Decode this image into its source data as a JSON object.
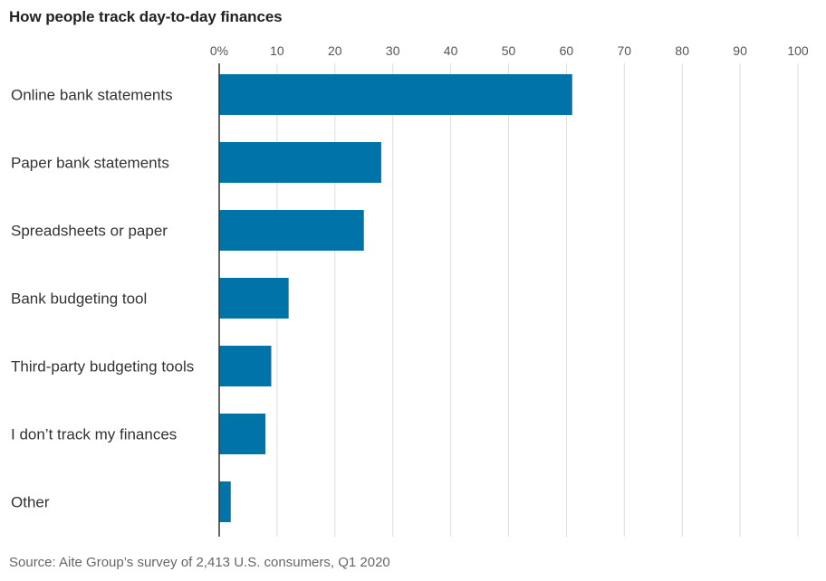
{
  "chart_data": {
    "type": "bar",
    "orientation": "horizontal",
    "title": "How people track day-to-day finances",
    "categories": [
      "Online bank statements",
      "Paper bank statements",
      "Spreadsheets or paper",
      "Bank budgeting tool",
      "Third-party budgeting tools",
      "I don’t track my finances",
      "Other"
    ],
    "values": [
      61,
      28,
      25,
      12,
      9,
      8,
      2
    ],
    "xlim": [
      0,
      100
    ],
    "x_ticks": [
      "0%",
      "10",
      "20",
      "30",
      "40",
      "50",
      "60",
      "70",
      "80",
      "90",
      "100"
    ],
    "grid": true,
    "bar_color": "#0073a8",
    "source": "Source: Aite Group’s survey of 2,413 U.S. consumers, Q1 2020"
  }
}
